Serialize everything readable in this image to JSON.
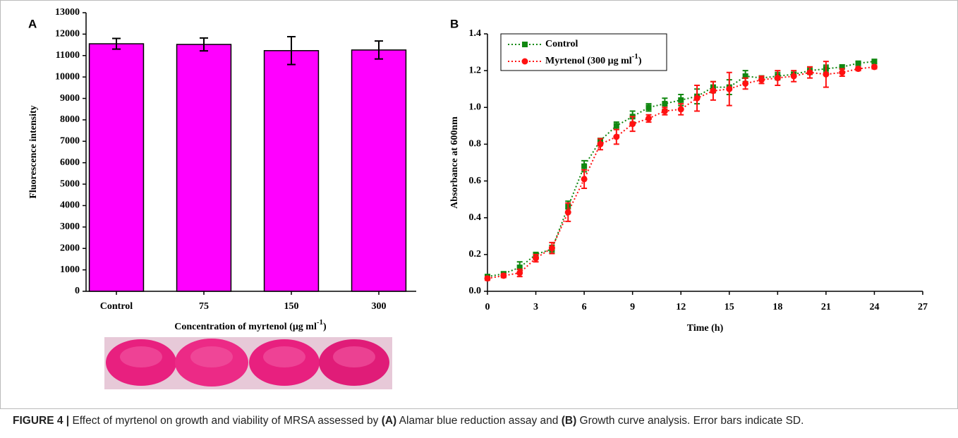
{
  "chart_data": [
    {
      "type": "bar",
      "panel": "A",
      "categories": [
        "Control",
        "75",
        "150",
        "300"
      ],
      "values": [
        11550,
        11520,
        11230,
        11260
      ],
      "errors": [
        250,
        300,
        650,
        420
      ],
      "color": "#ff00ff",
      "ylabel": "Fluorescence intensity",
      "xlabel": [
        "Concentration of myrtenol (μg ml",
        "-1",
        ")"
      ],
      "ylim": [
        0,
        13000
      ],
      "yticks": [
        0,
        1000,
        2000,
        3000,
        4000,
        5000,
        6000,
        7000,
        8000,
        9000,
        10000,
        11000,
        12000,
        13000
      ]
    },
    {
      "type": "line",
      "panel": "B",
      "x": [
        0,
        1,
        2,
        3,
        4,
        5,
        6,
        7,
        8,
        9,
        10,
        11,
        12,
        13,
        14,
        15,
        16,
        17,
        18,
        19,
        20,
        21,
        22,
        23,
        24
      ],
      "series": [
        {
          "name": [
            "Control"
          ],
          "color": "#118811",
          "marker": "square",
          "values": [
            0.08,
            0.095,
            0.13,
            0.2,
            0.23,
            0.46,
            0.68,
            0.82,
            0.9,
            0.95,
            1.0,
            1.02,
            1.04,
            1.06,
            1.11,
            1.11,
            1.17,
            1.16,
            1.17,
            1.18,
            1.2,
            1.21,
            1.22,
            1.24,
            1.25
          ],
          "errors": [
            0.01,
            0.01,
            0.03,
            0.01,
            0.02,
            0.03,
            0.03,
            0.01,
            0.02,
            0.03,
            0.02,
            0.03,
            0.03,
            0.04,
            0.03,
            0.04,
            0.03,
            0.01,
            0.02,
            0.01,
            0.02,
            0.02,
            0.01,
            0.01,
            0.01
          ]
        },
        {
          "name": [
            "Myrtenol (300 μg ml",
            "-1",
            ")"
          ],
          "color": "#ff1111",
          "marker": "circle",
          "values": [
            0.07,
            0.085,
            0.1,
            0.18,
            0.235,
            0.43,
            0.61,
            0.8,
            0.84,
            0.91,
            0.94,
            0.98,
            0.99,
            1.05,
            1.09,
            1.1,
            1.13,
            1.15,
            1.16,
            1.17,
            1.19,
            1.18,
            1.19,
            1.21,
            1.22
          ],
          "errors": [
            0.01,
            0.01,
            0.02,
            0.02,
            0.03,
            0.05,
            0.05,
            0.03,
            0.04,
            0.04,
            0.02,
            0.02,
            0.03,
            0.07,
            0.05,
            0.09,
            0.03,
            0.02,
            0.04,
            0.03,
            0.03,
            0.07,
            0.02,
            0.01,
            0.01
          ]
        }
      ],
      "xlabel": "Time (h)",
      "ylabel": "Absorbance at 600nm",
      "xlim": [
        0,
        27
      ],
      "xticks": [
        0,
        3,
        6,
        9,
        12,
        15,
        18,
        21,
        24,
        27
      ],
      "ylim": [
        0,
        1.4
      ],
      "yticks": [
        {
          "value": 0,
          "label": "0.0"
        },
        0.2,
        0.4,
        0.6,
        0.8,
        {
          "value": 1,
          "label": "1.0"
        },
        1.2,
        1.4
      ],
      "legend": "upper left"
    }
  ],
  "caption": [
    "FIGURE 4 |",
    " Effect of myrtenol on growth and viability of MRSA assessed by ",
    "(A)",
    " Alamar blue reduction assay and ",
    "(B)",
    " Growth curve analysis. Error bars indicate SD."
  ]
}
